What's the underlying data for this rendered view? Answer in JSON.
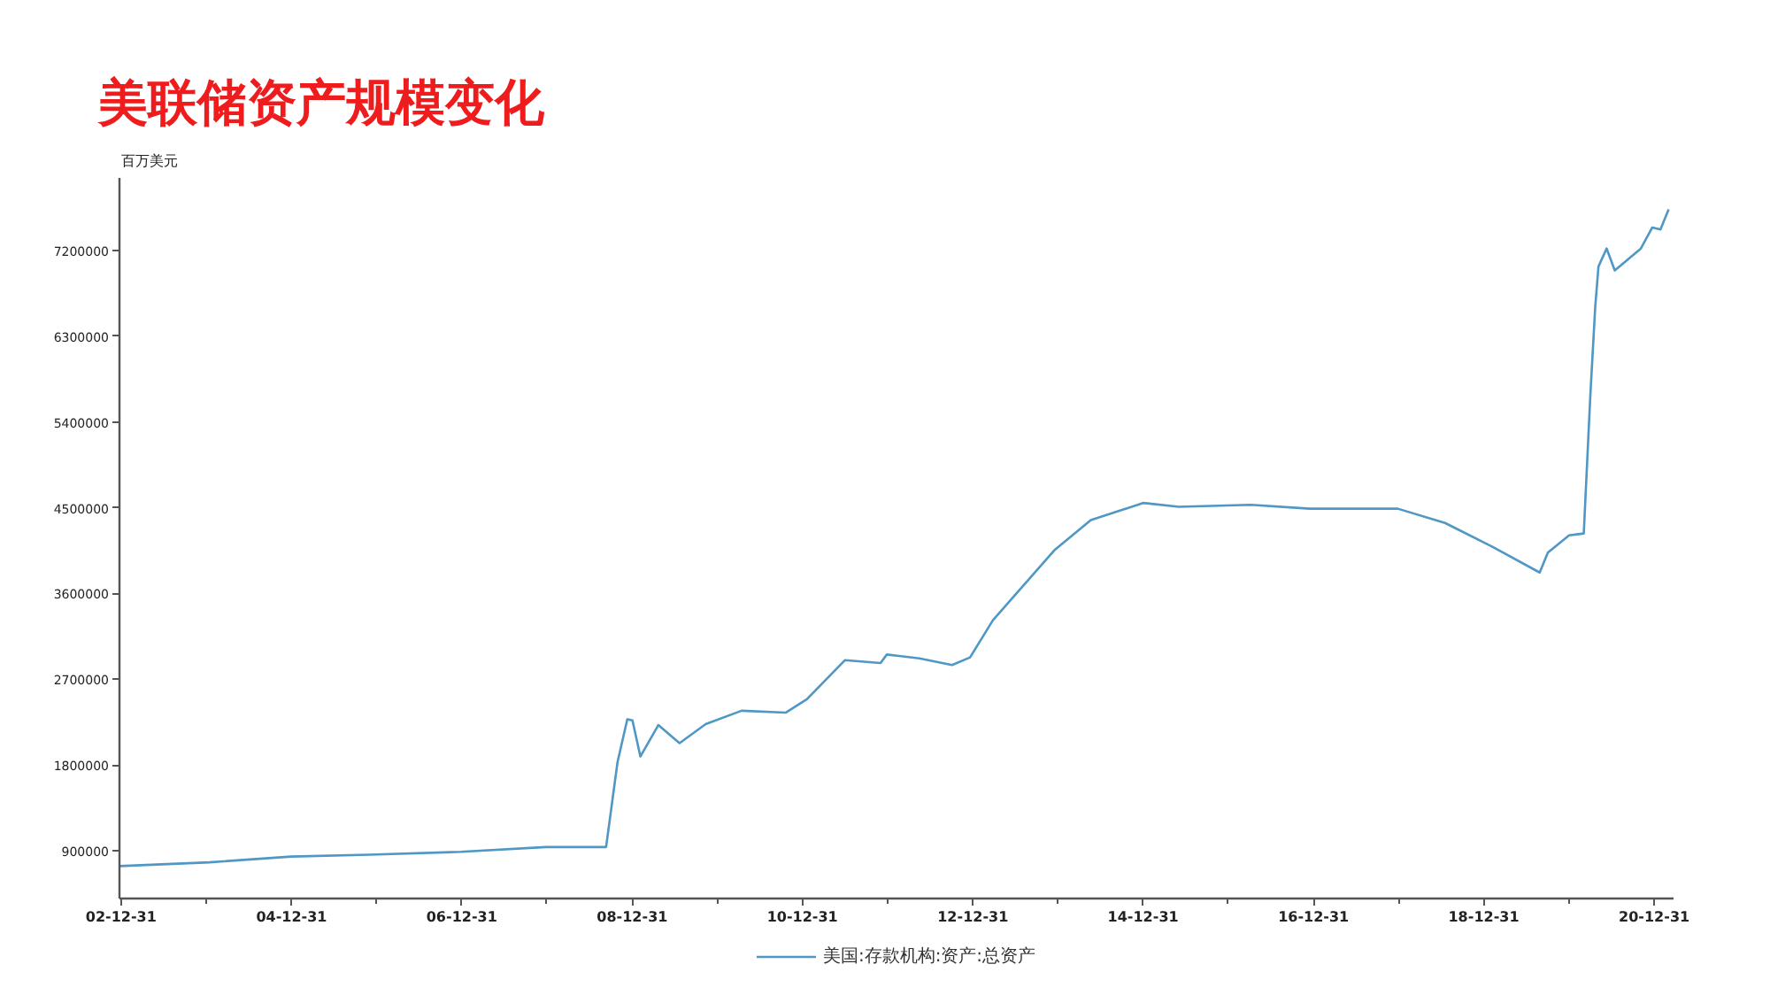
{
  "chart_data": {
    "type": "line",
    "title": "美联储资产规模变化",
    "ylabel": "百万美元",
    "x": [
      "2002-12-25",
      "2004-01-14",
      "2004-12-29",
      "2005-11-30",
      "2006-12-27",
      "2007-12-26",
      "2008-09-10",
      "2008-10-29",
      "2008-12-10",
      "2009-01-01",
      "2009-02-04",
      "2009-04-22",
      "2009-07-22",
      "2009-11-11",
      "2010-04-14",
      "2010-10-20",
      "2011-01-19",
      "2011-07-01",
      "2011-12-01",
      "2011-12-28",
      "2012-05-16",
      "2012-10-03",
      "2012-12-19",
      "2013-03-27",
      "2013-12-18",
      "2014-05-21",
      "2014-12-31",
      "2015-06-03",
      "2016-04-06",
      "2016-12-14",
      "2017-12-27",
      "2018-07-18",
      "2019-02-06",
      "2019-08-28",
      "2019-10-02",
      "2020-01-01",
      "2020-03-04",
      "2020-04-01",
      "2020-04-22",
      "2020-05-06",
      "2020-06-10",
      "2020-07-15",
      "2020-11-04",
      "2020-12-23",
      "2021-01-27",
      "2021-03-03"
    ],
    "series": [
      {
        "name": "美国:存款机构:资产:总资产",
        "color": "#4f97c4",
        "values": [
          740000,
          780000,
          840000,
          860000,
          890000,
          940000,
          940000,
          1830000,
          2280000,
          2270000,
          1890000,
          2220000,
          2030000,
          2230000,
          2370000,
          2350000,
          2490000,
          2900000,
          2870000,
          2960000,
          2920000,
          2850000,
          2930000,
          3320000,
          4060000,
          4370000,
          4550000,
          4510000,
          4530000,
          4490000,
          4490000,
          4340000,
          4090000,
          3820000,
          4030000,
          4210000,
          4230000,
          5670000,
          6600000,
          7030000,
          7220000,
          6990000,
          7220000,
          7440000,
          7420000,
          7630000
        ]
      }
    ],
    "xlim": [
      "2002-12-24",
      "2021-03-24"
    ],
    "ylim": [
      400000,
      7960000
    ],
    "xticks": [
      {
        "value": "2002-12-31",
        "label": "02-12-31"
      },
      {
        "value": "2003-12-31",
        "label": null
      },
      {
        "value": "2004-12-31",
        "label": "04-12-31"
      },
      {
        "value": "2005-12-31",
        "label": null
      },
      {
        "value": "2006-12-31",
        "label": "06-12-31"
      },
      {
        "value": "2007-12-31",
        "label": null
      },
      {
        "value": "2008-12-31",
        "label": "08-12-31"
      },
      {
        "value": "2009-12-31",
        "label": null
      },
      {
        "value": "2010-12-31",
        "label": "10-12-31"
      },
      {
        "value": "2011-12-31",
        "label": null
      },
      {
        "value": "2012-12-31",
        "label": "12-12-31"
      },
      {
        "value": "2013-12-31",
        "label": null
      },
      {
        "value": "2014-12-31",
        "label": "14-12-31"
      },
      {
        "value": "2015-12-31",
        "label": null
      },
      {
        "value": "2016-12-31",
        "label": "16-12-31"
      },
      {
        "value": "2017-12-31",
        "label": null
      },
      {
        "value": "2018-12-31",
        "label": "18-12-31"
      },
      {
        "value": "2019-12-31",
        "label": null
      },
      {
        "value": "2020-12-31",
        "label": "20-12-31"
      }
    ],
    "yticks": [
      900000,
      1800000,
      2700000,
      3600000,
      4500000,
      5400000,
      6300000,
      7200000
    ],
    "grid": false,
    "legend": "bottom",
    "line_style": "solid"
  }
}
